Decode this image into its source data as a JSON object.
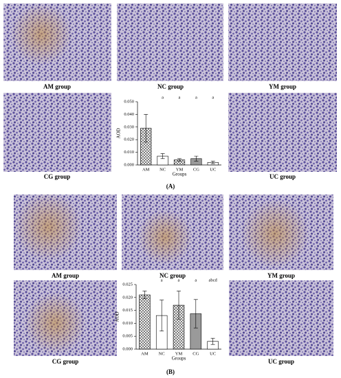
{
  "figure": {
    "captions": [
      "(A)",
      "(B)"
    ],
    "panel_a_labels": [
      "AM group",
      "NC group",
      "YM group",
      "CG group",
      "UC group"
    ],
    "panel_b_labels": [
      "AM group",
      "NC group",
      "YM group",
      "CG group",
      "UC group"
    ]
  },
  "chart_data": [
    {
      "type": "bar",
      "ylabel": "AOD",
      "xlabel": "Groups",
      "categories": [
        "AM",
        "NC",
        "YM",
        "CG",
        "UC"
      ],
      "values": [
        0.029,
        0.007,
        0.004,
        0.005,
        0.002
      ],
      "errors": [
        0.011,
        0.002,
        0.001,
        0.002,
        0.001
      ],
      "annotations": [
        null,
        "a",
        "a",
        "a",
        "a"
      ],
      "colors": [
        "#ffffff",
        "#ffffff",
        "#ffffff",
        "#9a9a9a",
        "#ffffff"
      ],
      "hatch": [
        true,
        false,
        true,
        false,
        false
      ],
      "ylim": [
        0,
        0.05
      ],
      "yticks": [
        {
          "value": 0,
          "label": "0.000"
        },
        {
          "value": 0.01,
          "label": "0.010"
        },
        {
          "value": 0.02,
          "label": "0.020"
        },
        {
          "value": 0.03,
          "label": "0.030"
        },
        {
          "value": 0.04,
          "label": "0.040"
        },
        {
          "value": 0.05,
          "label": "0.050"
        }
      ]
    },
    {
      "type": "bar",
      "ylabel": "AOD",
      "xlabel": "Groups",
      "categories": [
        "AM",
        "NC",
        "YM",
        "CG",
        "UC"
      ],
      "values": [
        0.021,
        0.013,
        0.017,
        0.0137,
        0.003
      ],
      "errors": [
        0.0015,
        0.006,
        0.0055,
        0.0055,
        0.0012
      ],
      "annotations": [
        null,
        "a",
        "a",
        "a",
        "abcd"
      ],
      "colors": [
        "#ffffff",
        "#ffffff",
        "#ffffff",
        "#9a9a9a",
        "#ffffff"
      ],
      "hatch": [
        true,
        false,
        true,
        false,
        false
      ],
      "ylim": [
        0,
        0.025
      ],
      "yticks": [
        {
          "value": 0,
          "label": "0.000"
        },
        {
          "value": 0.005,
          "label": "0.005"
        },
        {
          "value": 0.01,
          "label": "0.010"
        },
        {
          "value": 0.015,
          "label": "0.015"
        },
        {
          "value": 0.02,
          "label": "0.020"
        },
        {
          "value": 0.025,
          "label": "0.025"
        }
      ]
    }
  ]
}
